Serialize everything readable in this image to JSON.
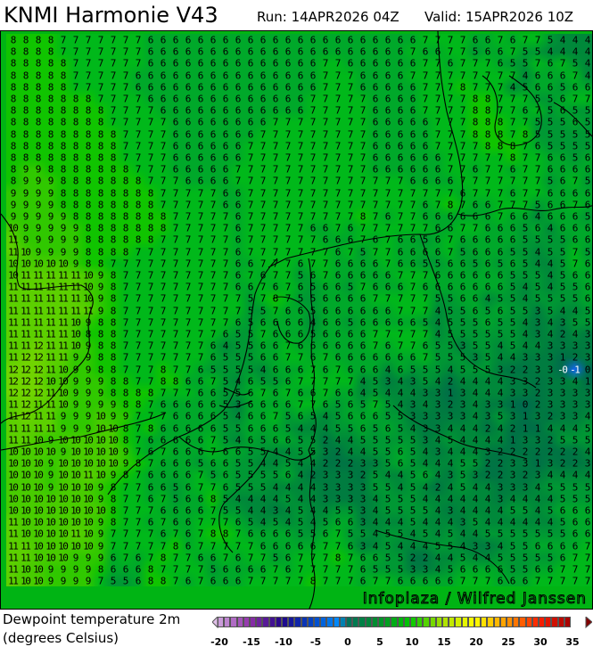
{
  "header": {
    "title": "KNMI Harmonie V43",
    "run": "Run: 14APR2026 04Z",
    "valid": "Valid: 15APR2026 10Z"
  },
  "legend": {
    "line1": "Dewpoint temperature 2m",
    "line2": "(degrees Celsius)",
    "ticks": [
      "-20",
      "-15",
      "-10",
      "-5",
      "0",
      "5",
      "10",
      "15",
      "20",
      "25",
      "30",
      "35"
    ],
    "range": [
      -20,
      35
    ],
    "stops": [
      [
        -20,
        "#d0a8e0"
      ],
      [
        -15,
        "#9030a8"
      ],
      [
        -10,
        "#200488"
      ],
      [
        -5,
        "#0048c8"
      ],
      [
        -1,
        "#0090ff"
      ],
      [
        0,
        "#007060"
      ],
      [
        5,
        "#00902c"
      ],
      [
        10,
        "#00c800"
      ],
      [
        15,
        "#a8e000"
      ],
      [
        20,
        "#ffff00"
      ],
      [
        25,
        "#ff9a00"
      ],
      [
        30,
        "#ff2000"
      ],
      [
        35,
        "#a00000"
      ]
    ]
  },
  "watermark": "Infoplaza / Wilfred Janssen",
  "map": {
    "field": "Dewpoint temperature 2m",
    "field_colors": {
      "-1": "#1466f0",
      "0": "#006a50",
      "1": "#006e48",
      "2": "#007444",
      "3": "#007c40",
      "4": "#00883a",
      "5": "#009834",
      "6": "#00a82a",
      "7": "#00b81a",
      "8": "#10c400",
      "9": "#30c800",
      "10": "#48cc00",
      "11": "#5cd000",
      "12": "#70d400"
    },
    "rows": [
      "8 8 8 8 7 7 7 7 7 7 7 6 6 6 6 6 6 6 6 6 6 6 6 6 6 6 6 6 6 6 6 6 6 7 7 7 7 6 6 7 6 7 7 5 4 4 4",
      "8 8 8 8 7 7 7 7 7 7 7 6 6 6 6 6 6 6 6 6 6 6 6 6 6 6 6 6 6 6 6 6 7 6 6 7 7 5 6 6 7 5 5 4 4 4 4",
      "8 8 8 8 8 7 7 7 7 7 7 6 6 6 6 6 6 6 6 6 6 6 6 6 6 7 7 6 6 6 6 6 6 7 7 6 7 7 7 6 5 5 7 6 7 5 4",
      "8 8 8 8 8 7 7 7 7 7 6 6 6 6 6 6 6 6 6 6 6 6 6 6 6 7 7 7 6 6 6 6 7 7 7 7 7 7 7 7 7 4 6 6 6 7 4",
      "8 8 8 8 8 7 7 7 7 7 6 6 6 6 6 6 6 6 6 6 6 6 6 6 6 7 7 7 6 6 6 6 6 7 7 7 8 7 7 7 4 5 6 6 5 6 6",
      "8 8 8 8 8 8 8 7 7 7 7 6 6 6 6 6 6 6 6 6 6 6 6 6 7 7 7 7 7 6 6 6 6 7 7 7 7 8 8 7 7 7 5 5 6 7 7",
      "8 8 8 8 8 8 8 8 7 7 7 7 6 6 6 6 6 6 6 6 6 6 6 6 7 7 7 7 7 6 6 6 6 7 7 7 7 8 8 7 7 6 7 5 6 5 5",
      "8 8 8 8 8 8 8 8 7 7 7 7 7 6 6 6 6 6 6 6 6 7 7 7 7 7 7 7 7 6 6 6 6 6 7 7 7 8 8 8 7 7 5 5 5 6 5",
      "8 8 8 8 8 8 8 8 8 7 7 7 7 6 6 6 6 6 6 6 7 7 7 7 7 7 7 7 7 6 6 6 6 6 7 7 7 8 8 8 7 8 5 5 5 5 5",
      "8 8 8 8 8 8 8 8 8 7 7 7 7 6 6 6 6 6 6 7 7 7 7 7 7 7 7 7 7 6 6 6 6 6 7 7 7 7 8 8 8 7 6 5 5 5 5",
      "8 8 8 8 8 8 8 8 8 7 7 7 7 6 6 6 6 6 6 7 7 7 7 7 7 7 7 7 7 6 6 6 6 6 6 7 7 7 7 7 8 7 7 6 6 5 6",
      "8 9 9 8 8 8 8 8 8 8 7 7 7 6 6 6 6 6 7 7 7 7 7 7 7 7 7 7 7 6 6 6 6 6 6 7 7 6 7 7 6 7 7 6 6 6 6",
      "8 9 9 9 8 8 8 8 8 8 8 7 7 7 6 6 6 6 7 7 7 7 7 7 7 7 7 7 7 7 7 7 6 6 6 6 7 7 7 7 7 7 7 5 6 7 5",
      "9 9 9 9 8 8 8 8 8 8 8 8 7 7 7 7 7 6 6 7 7 7 7 7 7 7 7 7 7 7 7 7 7 7 7 7 6 7 7 7 6 7 7 6 6 6 6",
      "9 9 9 9 8 8 8 8 8 8 8 8 7 7 7 7 7 6 6 7 7 7 7 7 7 7 7 7 7 7 7 7 7 6 7 8 7 6 6 7 7 7 5 6 6 7 6",
      "9 9 9 9 9 8 8 8 8 8 8 8 8 7 7 7 7 7 6 7 7 7 7 7 7 7 7 7 8 7 6 7 7 6 6 6 6 6 6 7 6 6 4 6 6 6 5",
      "10 9 9 9 9 9 8 8 8 8 8 8 8 7 7 7 7 7 6 7 7 7 7 7 6 6 7 6 7 7 7 7 7 7 6 6 7 7 6 6 6 5 6 4 6 6 6",
      "11 9 9 9 9 9 8 8 8 8 8 8 7 7 7 7 7 7 6 7 7 7 7 7 7 6 6 6 7 6 7 6 6 5 6 7 6 6 6 6 6 5 5 5 5 6 6",
      "11 10 9 9 9 9 8 8 8 8 7 7 7 7 7 7 7 7 6 7 7 7 7 7 7 7 6 7 5 7 7 6 6 6 6 7 5 6 6 6 5 5 4 5 5 7 5",
      "10 10 10 10 10 9 8 8 7 7 7 7 7 7 7 7 7 7 6 6 7 7 7 6 7 7 6 6 6 6 7 6 6 5 5 6 6 5 6 5 6 5 4 4 5 7 6",
      "10 11 11 11 11 11 10 9 8 7 7 7 7 7 7 7 7 7 6 7 6 7 7 5 6 7 6 6 6 6 6 7 7 7 6 6 6 6 6 6 5 5 5 4 5 6 6",
      "11 11 11 11 11 11 10 9 8 7 7 7 7 7 7 7 7 7 6 6 7 6 7 6 5 6 6 5 7 6 6 6 7 6 6 6 6 6 6 6 5 4 5 4 5 5 6",
      "11 11 11 11 11 11 10 9 8 7 7 7 7 7 7 7 7 7 7 5 7 8 7 5 5 6 6 6 6 7 7 7 7 7 5 5 6 6 4 5 5 4 5 5 5 5 6",
      "11 11 11 11 11 11 11 9 8 7 7 7 7 7 7 7 7 7 7 5 5 7 6 6 5 6 6 6 6 6 6 7 7 7 4 5 5 6 5 6 5 5 3 5 4 4 5",
      "11 11 11 11 11 10 9 8 8 7 7 7 7 7 7 7 7 7 6 5 6 6 6 6 4 6 6 5 6 6 6 6 6 5 4 5 5 5 6 5 5 4 3 4 3 5 5",
      "11 11 11 11 11 10 8 8 8 7 7 7 7 7 7 7 7 6 5 5 7 6 6 6 5 6 6 6 6 7 7 7 7 7 4 5 5 5 5 5 5 4 3 4 2 4 3",
      "11 11 12 11 11 10 9 8 8 7 7 7 7 7 7 7 6 4 5 5 6 6 7 6 6 6 6 6 6 7 6 7 7 6 5 5 3 5 5 4 5 4 4 3 3 3 3",
      "11 12 12 11 11 9 9 8 8 7 7 7 7 7 7 7 6 5 5 5 6 6 7 7 6 7 6 6 6 6 6 6 6 7 5 5 5 3 5 4 4 3 3 3 1 2 3",
      "12 12 12 11 10 9 9 8 8 7 7 7 8 7 7 6 5 5 5 5 4 6 6 6 7 6 7 6 6 6 4 6 5 5 5 4 5 5 5 3 2 2 3 3 -0 -1 0",
      "12 12 12 10 10 9 9 9 8 8 7 7 8 8 6 6 7 5 4 6 5 5 6 7 7 7 7 7 4 5 3 4 3 5 4 2 4 4 4 4 3 3 2 3 3 4 1",
      "12 12 12 11 10 9 9 9 8 8 8 8 7 7 7 6 6 5 5 6 7 6 7 6 6 7 6 6 4 5 4 4 4 3 3 1 3 4 4 4 3 3 2 3 3 3 3",
      "11 12 11 11 10 9 9 9 9 8 8 7 6 6 6 6 6 5 3 6 6 6 6 7 7 6 5 6 5 7 5 4 3 4 3 2 3 4 3 3 1 0 2 3 3 3 3",
      "11 12 11 11 9 9 9 10 9 9 7 7 7 6 6 6 6 5 4 6 6 7 5 6 5 4 5 6 6 6 5 5 3 3 3 3 3 4 3 5 3 1 3 2 3 3 4",
      "11 11 11 11 9 9 9 10 10 8 7 8 6 6 6 6 6 5 5 6 6 6 5 4 4 4 5 5 6 5 6 5 4 3 3 4 4 4 2 4 2 1 1 4 4 4 5",
      "11 11 10 9 10 10 10 10 10 8 7 6 6 6 6 6 7 5 4 6 5 6 6 5 5 2 4 4 5 5 5 5 5 3 4 5 4 4 4 4 1 3 3 2 5 5 5",
      "10 10 10 10 9 10 10 10 10 9 7 6 7 6 6 6 7 6 6 5 5 4 4 5 5 3 2 4 4 5 5 6 5 4 3 4 4 4 3 2 2 2 2 2 2 2 4",
      "10 10 10 9 10 10 10 10 10 9 8 7 6 6 6 5 6 6 5 5 4 4 5 4 4 2 2 2 3 3 5 6 5 4 4 4 5 5 2 2 3 3 1 3 2 2 3",
      "10 10 10 9 10 10 11 10 9 8 7 6 6 6 6 7 5 6 5 5 5 5 6 4 2 3 3 3 2 5 4 4 5 6 4 3 5 3 2 2 3 2 3 4 4 4 4",
      "10 10 10 9 10 10 10 9 8 7 7 6 6 5 6 7 7 6 5 5 5 4 4 4 4 3 3 3 3 5 5 4 5 4 2 4 5 4 4 3 3 3 4 5 5 5 5",
      "10 10 10 10 10 10 10 9 8 7 7 6 7 5 6 6 8 5 4 4 4 4 5 4 4 3 3 3 3 4 5 5 5 4 4 4 4 4 4 3 4 4 4 4 5 5 5",
      "10 10 10 10 10 10 10 10 8 7 7 7 6 6 6 6 7 5 5 4 4 3 4 5 4 4 5 5 3 4 5 5 5 5 4 3 4 4 4 4 5 5 4 5 6 6 6",
      "11 10 10 10 10 10 10 9 8 7 7 6 7 6 6 7 7 7 6 5 4 5 4 5 4 5 6 6 3 4 4 4 5 4 4 4 3 5 4 4 4 4 4 4 5 6 6",
      "11 10 10 10 10 11 10 9 7 7 7 7 6 7 6 7 8 8 7 6 6 6 6 5 5 6 7 5 5 4 5 5 4 5 4 5 4 4 5 5 5 5 5 5 5 6 6",
      "11 11 10 10 10 10 10 9 7 7 7 7 7 8 6 7 7 7 7 7 6 6 6 6 6 7 7 6 3 4 5 4 4 4 5 5 4 3 3 4 5 5 6 6 6 6 7",
      "11 11 10 10 10 9 9 9 6 7 6 7 8 7 7 6 6 7 6 7 7 5 6 7 7 7 8 7 6 6 5 5 2 2 4 4 5 4 4 5 5 5 5 5 6 7 7",
      "11 10 10 9 9 9 9 8 6 6 6 8 7 7 7 7 5 6 6 6 6 7 6 7 7 7 7 7 6 5 5 5 3 3 4 5 6 6 6 6 5 5 6 6 7 7 7",
      "11 10 10 9 9 9 9 7 5 5 6 8 8 7 6 7 6 6 6 7 7 7 7 7 8 7 7 7 6 7 7 6 6 6 6 6 7 7 7 6 6 6 7 7 7 7 7"
    ]
  }
}
